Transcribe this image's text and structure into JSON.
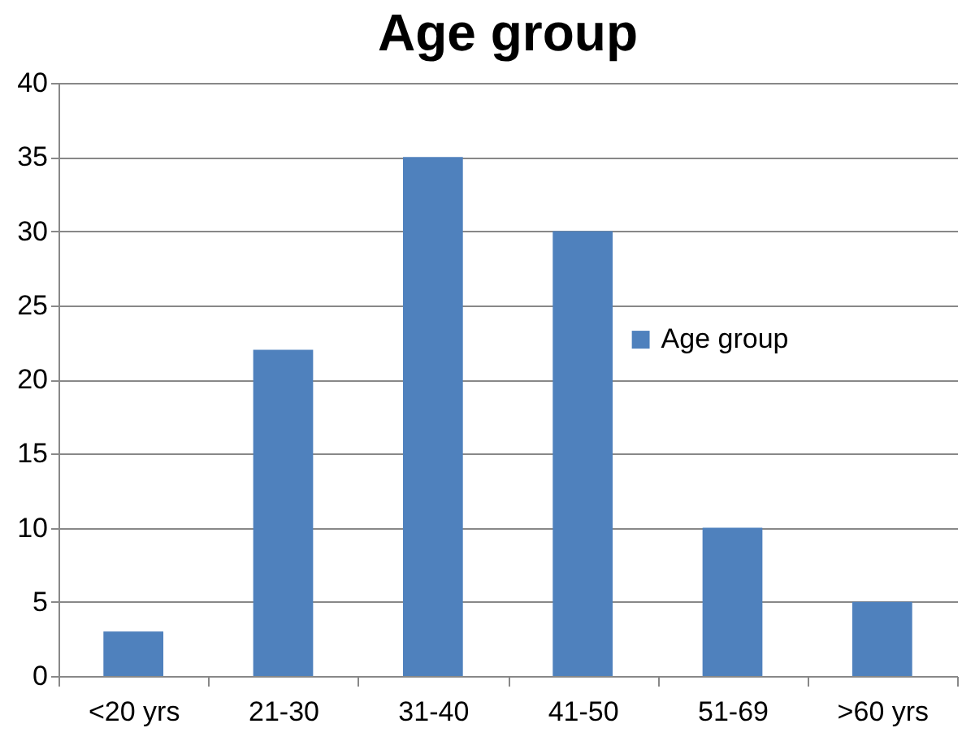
{
  "chart_data": {
    "type": "bar",
    "title": "Age group",
    "categories": [
      "<20 yrs",
      "21-30",
      "31-40",
      "41-50",
      "51-69",
      ">60 yrs"
    ],
    "series": [
      {
        "name": "Age group",
        "color": "#4f81bd",
        "values": [
          3,
          22,
          35,
          30,
          10,
          5
        ]
      }
    ],
    "ylim": [
      0,
      40
    ],
    "yticks": [
      0,
      5,
      10,
      15,
      20,
      25,
      30,
      35,
      40
    ],
    "grid": "y",
    "legend": "right"
  }
}
